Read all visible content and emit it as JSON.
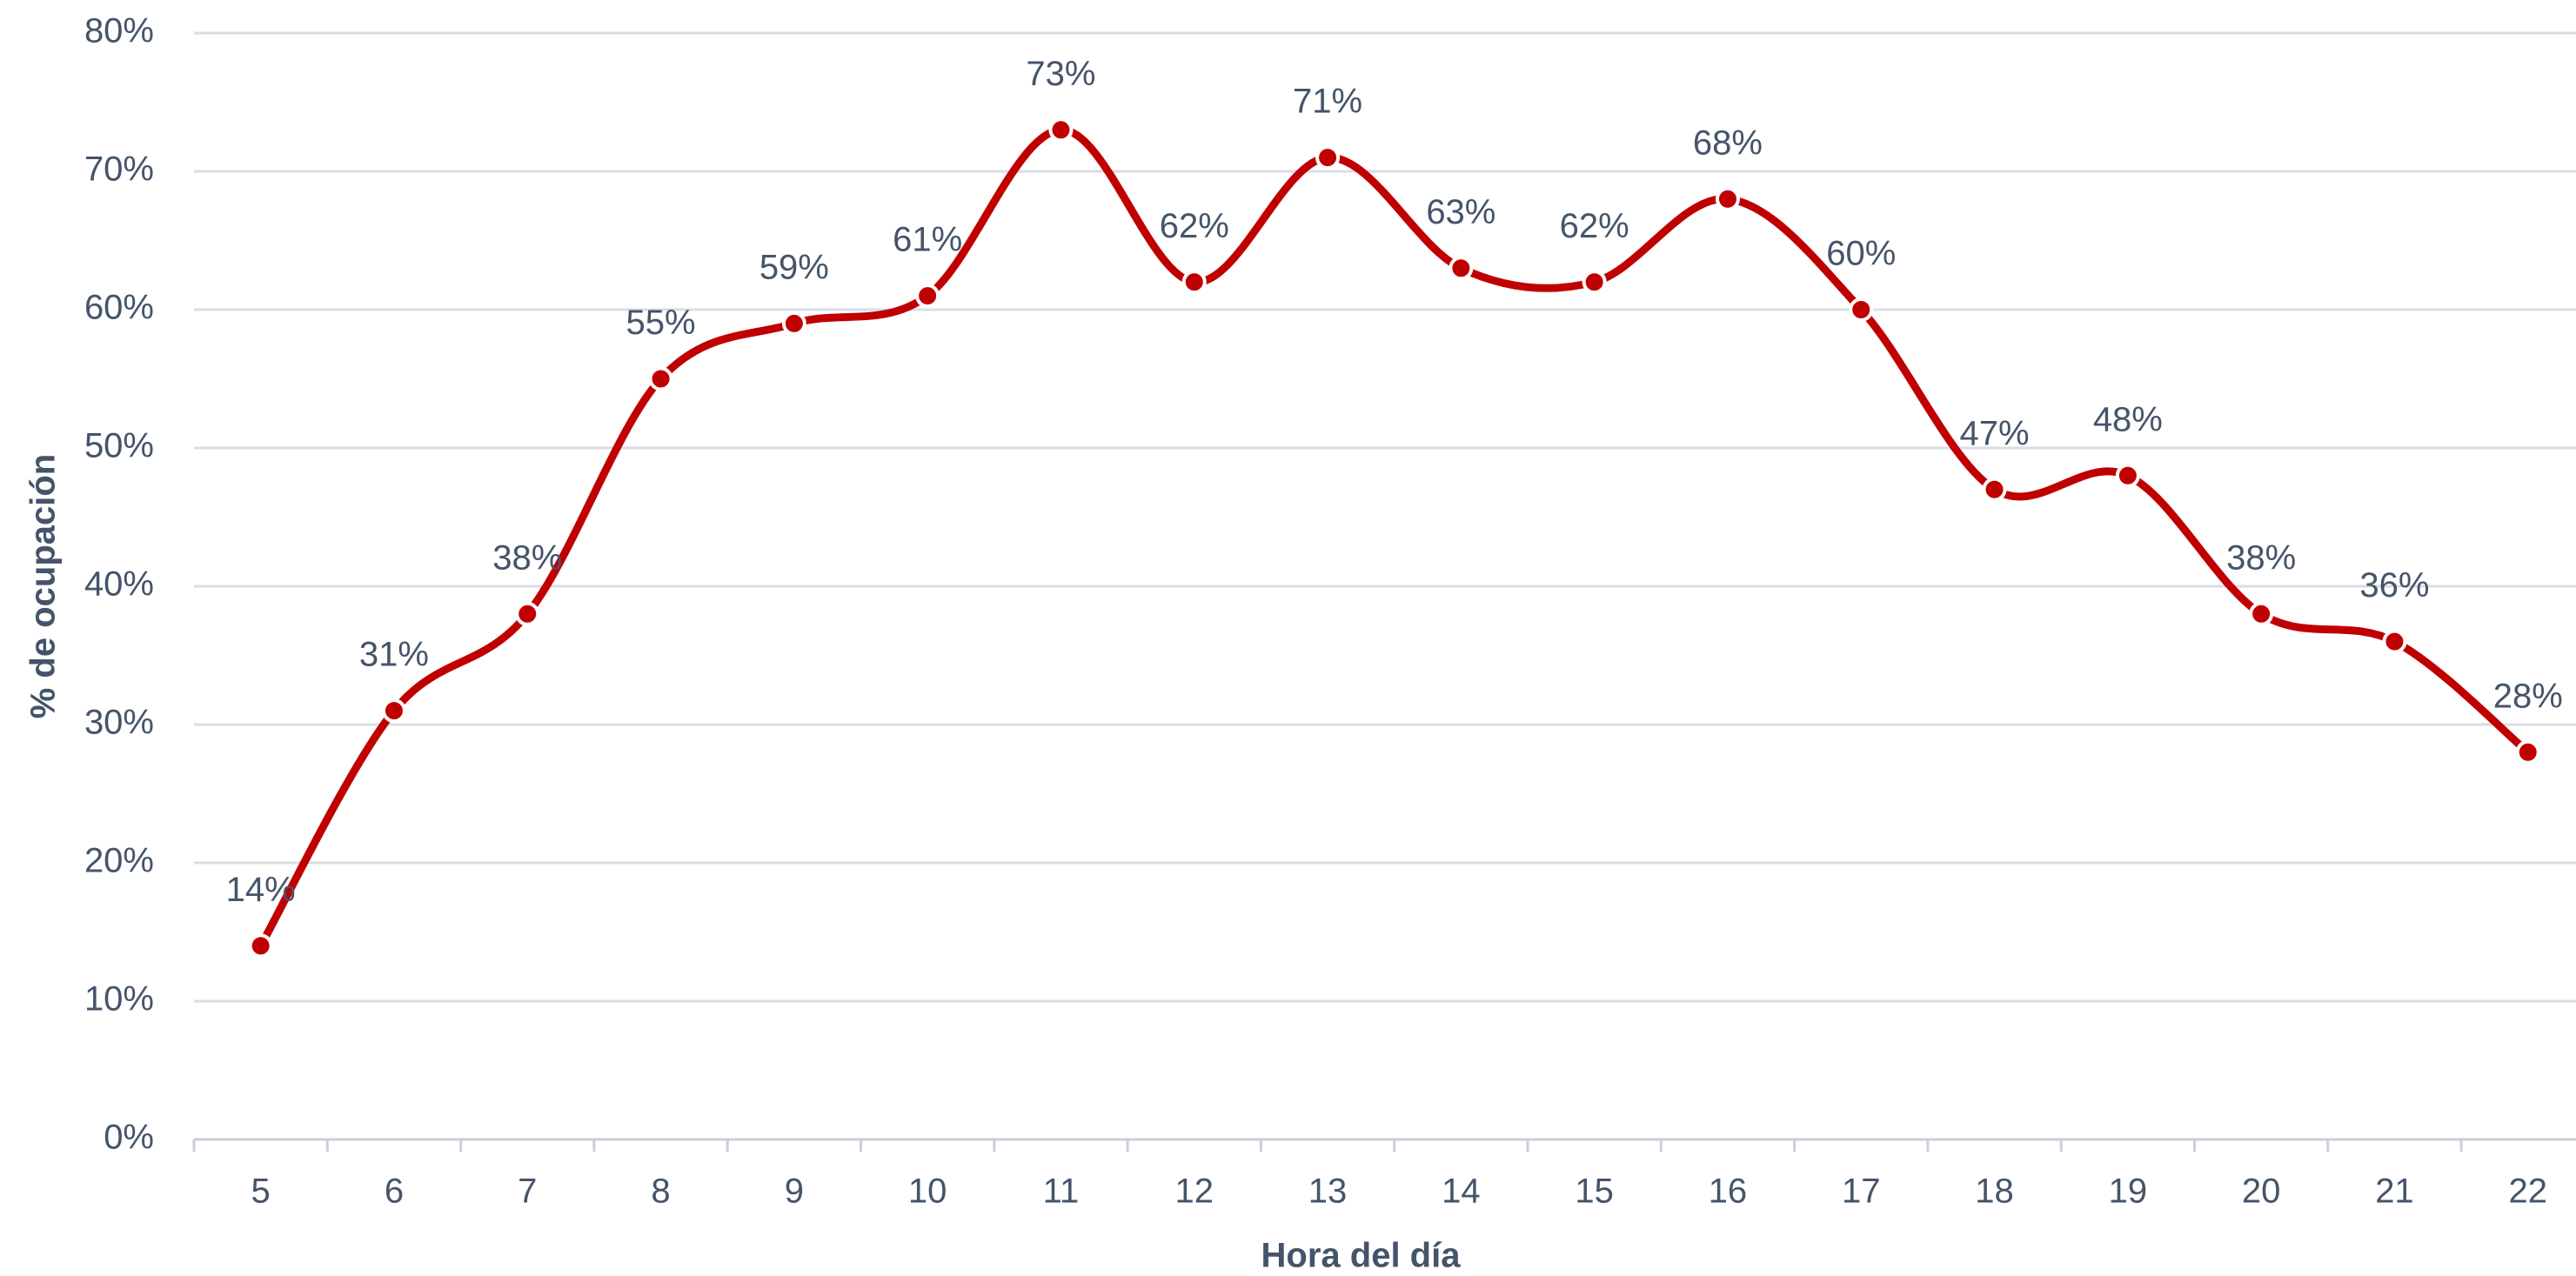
{
  "chart_data": {
    "type": "line",
    "x_label": "Hora del día",
    "y_label": "% de ocupación",
    "categories": [
      "5",
      "6",
      "7",
      "8",
      "9",
      "10",
      "11",
      "12",
      "13",
      "14",
      "15",
      "16",
      "17",
      "18",
      "19",
      "20",
      "21",
      "22"
    ],
    "series": [
      {
        "name": "% de ocupación",
        "color": "#c00000",
        "values": [
          14,
          31,
          38,
          55,
          59,
          61,
          73,
          62,
          71,
          63,
          62,
          68,
          60,
          47,
          48,
          38,
          36,
          28
        ],
        "value_labels": [
          "14%",
          "31%",
          "38%",
          "55%",
          "59%",
          "61%",
          "73%",
          "62%",
          "71%",
          "63%",
          "62%",
          "68%",
          "60%",
          "47%",
          "48%",
          "38%",
          "36%",
          "28%"
        ]
      }
    ],
    "ylim": [
      0,
      80
    ],
    "yticks": [
      {
        "value": 0,
        "label": "0%"
      },
      {
        "value": 10,
        "label": "10%"
      },
      {
        "value": 20,
        "label": "20%"
      },
      {
        "value": 30,
        "label": "30%"
      },
      {
        "value": 40,
        "label": "40%"
      },
      {
        "value": 50,
        "label": "50%"
      },
      {
        "value": 60,
        "label": "60%"
      },
      {
        "value": 70,
        "label": "70%"
      },
      {
        "value": 80,
        "label": "80%"
      }
    ],
    "grid": true,
    "smooth": true
  }
}
